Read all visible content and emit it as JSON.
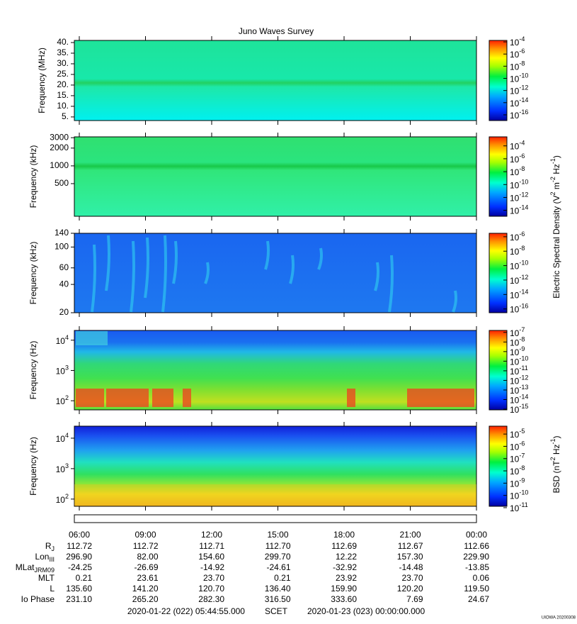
{
  "chart_data": {
    "type": "spectrogram",
    "title": "Juno Waves Survey",
    "panels": [
      {
        "ylabel": "Frequency (MHz)",
        "log": false,
        "ylim": [
          3.3,
          41
        ],
        "yticks": [
          {
            "value": 40,
            "label": "40."
          },
          {
            "value": 35,
            "label": "35."
          },
          {
            "value": 30,
            "label": "30."
          },
          {
            "value": 25,
            "label": "25."
          },
          {
            "value": 20,
            "label": "20."
          },
          {
            "value": 15,
            "label": "15."
          },
          {
            "value": 10,
            "label": "10."
          },
          {
            "value": 5,
            "label": "5."
          }
        ],
        "clim": [
          1.15e-17,
          0.000174
        ],
        "cticks": [
          {
            "value": 0.0001,
            "label": [
              "10",
              "-4"
            ]
          },
          {
            "value": 1e-06,
            "label": [
              "10",
              "-6"
            ]
          },
          {
            "value": 1e-08,
            "label": [
              "10",
              "-8"
            ]
          },
          {
            "value": 1e-10,
            "label": [
              "10",
              "-10"
            ]
          },
          {
            "value": 1e-12,
            "label": [
              "10",
              "-12"
            ]
          },
          {
            "value": 1e-14,
            "label": [
              "10",
              "-14"
            ]
          },
          {
            "value": 1e-16,
            "label": [
              "10",
              "-16"
            ]
          }
        ]
      },
      {
        "ylabel": "Frequency (kHz)",
        "log": true,
        "ylim": [
          140,
          3100
        ],
        "yticks": [
          3000,
          2000,
          1000,
          500
        ],
        "clim": [
          1.2e-15,
          0.0025
        ],
        "cticks": [
          {
            "value": 0.0001,
            "label": [
              "10",
              "-4"
            ]
          },
          {
            "value": 1e-06,
            "label": [
              "10",
              "-6"
            ]
          },
          {
            "value": 1e-08,
            "label": [
              "10",
              "-8"
            ]
          },
          {
            "value": 1e-10,
            "label": [
              "10",
              "-10"
            ]
          },
          {
            "value": 1e-12,
            "label": [
              "10",
              "-12"
            ]
          },
          {
            "value": 1e-14,
            "label": [
              "10",
              "-14"
            ]
          }
        ]
      },
      {
        "ylabel": "Frequency (kHz)",
        "log": true,
        "ylim": [
          20,
          140
        ],
        "yticks": [
          140,
          100,
          60,
          40,
          20
        ],
        "clim": [
          3e-17,
          3e-06
        ],
        "cticks": [
          {
            "value": 1e-06,
            "label": [
              "10",
              "-6"
            ]
          },
          {
            "value": 1e-08,
            "label": [
              "10",
              "-8"
            ]
          },
          {
            "value": 1e-10,
            "label": [
              "10",
              "-10"
            ]
          },
          {
            "value": 1e-12,
            "label": [
              "10",
              "-12"
            ]
          },
          {
            "value": 1e-14,
            "label": [
              "10",
              "-14"
            ]
          },
          {
            "value": 1e-16,
            "label": [
              "10",
              "-16"
            ]
          }
        ]
      },
      {
        "ylabel": "Frequency (Hz)",
        "log": true,
        "ylim": [
          50,
          21000
        ],
        "yticks": [
          {
            "value": 10000,
            "label": [
              "10",
              "4"
            ]
          },
          {
            "value": 1000,
            "label": [
              "10",
              "3"
            ]
          },
          {
            "value": 100,
            "label": [
              "10",
              "2"
            ]
          }
        ],
        "clim": [
          8.5e-16,
          1.6e-07
        ],
        "cticks": [
          {
            "value": 1e-07,
            "label": [
              "10",
              "-7"
            ]
          },
          {
            "value": 1e-08,
            "label": [
              "10",
              "-8"
            ]
          },
          {
            "value": 1e-09,
            "label": [
              "10",
              "-9"
            ]
          },
          {
            "value": 1e-10,
            "label": [
              "10",
              "-10"
            ]
          },
          {
            "value": 1e-11,
            "label": [
              "10",
              "-11"
            ]
          },
          {
            "value": 1e-12,
            "label": [
              "10",
              "-12"
            ]
          },
          {
            "value": 1e-13,
            "label": [
              "10",
              "-13"
            ]
          },
          {
            "value": 1e-14,
            "label": [
              "10",
              "-14"
            ]
          },
          {
            "value": 1e-15,
            "label": [
              "10",
              "-15"
            ]
          }
        ]
      },
      {
        "ylabel": "Frequency (Hz)",
        "log": true,
        "ylim": [
          58,
          24800
        ],
        "yticks": [
          {
            "value": 10000,
            "label": [
              "10",
              "4"
            ]
          },
          {
            "value": 1000,
            "label": [
              "10",
              "3"
            ]
          },
          {
            "value": 100,
            "label": [
              "10",
              "2"
            ]
          }
        ],
        "clim": [
          1.3e-11,
          4.4e-05
        ],
        "cticks": [
          {
            "value": 1e-05,
            "label": [
              "10",
              "-5"
            ]
          },
          {
            "value": 1e-06,
            "label": [
              "10",
              "-6"
            ]
          },
          {
            "value": 1e-07,
            "label": [
              "10",
              "-7"
            ]
          },
          {
            "value": 1e-08,
            "label": [
              "10",
              "-8"
            ]
          },
          {
            "value": 1e-09,
            "label": [
              "10",
              "-9"
            ]
          },
          {
            "value": 1e-10,
            "label": [
              "10",
              "-10"
            ]
          },
          {
            "value": 1e-11,
            "label": [
              "10",
              "-11"
            ]
          }
        ]
      }
    ],
    "colorbar_labels": [
      [
        "Electric Spectral Density (V",
        "2",
        " m",
        "-2",
        " Hz",
        "-1",
        ")"
      ],
      [
        "BSD (nT",
        "2",
        " Hz",
        "-1",
        ")"
      ]
    ],
    "time_ticks": [
      "06:00",
      "09:00",
      "12:00",
      "15:00",
      "18:00",
      "21:00",
      "00:00"
    ],
    "ephemeris": [
      {
        "label": [
          "R",
          "J"
        ],
        "values": [
          "112.72",
          "112.72",
          "112.71",
          "112.70",
          "112.69",
          "112.67",
          "112.66"
        ]
      },
      {
        "label": [
          "Lon",
          "III"
        ],
        "values": [
          "296.90",
          "82.00",
          "154.60",
          "299.70",
          "12.22",
          "157.30",
          "229.90"
        ]
      },
      {
        "label": [
          "MLat",
          "JRM09"
        ],
        "values": [
          "-24.25",
          "-26.69",
          "-14.92",
          "-24.61",
          "-32.92",
          "-14.48",
          "-13.85"
        ]
      },
      {
        "label": [
          "MLT"
        ],
        "values": [
          "0.21",
          "23.61",
          "23.70",
          "0.21",
          "23.92",
          "23.70",
          "0.06"
        ]
      },
      {
        "label": [
          "L"
        ],
        "values": [
          "135.60",
          "141.20",
          "120.70",
          "136.40",
          "159.90",
          "120.20",
          "119.50"
        ]
      },
      {
        "label": [
          "Io Phase"
        ],
        "values": [
          "231.10",
          "265.20",
          "282.30",
          "316.50",
          "333.60",
          "7.69",
          "24.67"
        ]
      }
    ],
    "footer": {
      "start": "2020-01-22 (022) 05:44:55.000",
      "label": "SCET",
      "end": "2020-01-23 (023) 00:00:00.000"
    },
    "stamp": "UIOWA 20200308"
  }
}
